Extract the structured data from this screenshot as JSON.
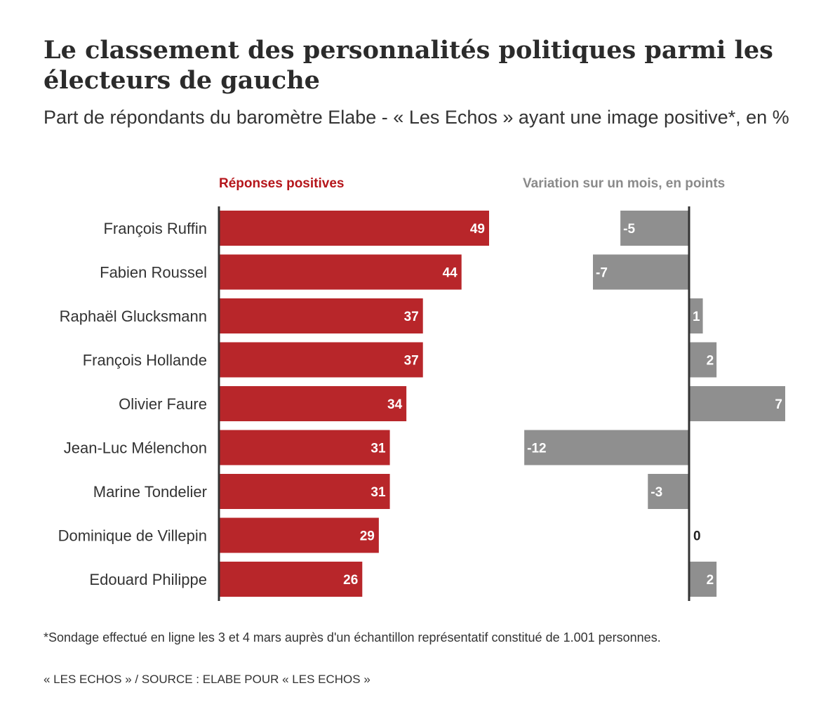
{
  "title": "Le classement des personnalités politiques parmi les électeurs de gauche",
  "subtitle": "Part de répondants du baromètre Elabe - « Les Echos » ayant une image positive*, en %",
  "footnote": "*Sondage effectué en ligne les 3 et 4 mars auprès d'un échantillon représentatif constitué de 1.001 personnes.",
  "source": "« LES ECHOS » / SOURCE : ELABE POUR « LES ECHOS »",
  "colors": {
    "positive_bar": "#b8262a",
    "variation_bar": "#8f8f8f",
    "positive_title": "#b5161b",
    "variation_title": "#8a8a8a",
    "axis": "#333333"
  },
  "chart_data": [
    {
      "type": "bar",
      "orientation": "horizontal",
      "title": "Réponses positives",
      "categories": [
        "François Ruffin",
        "Fabien Roussel",
        "Raphaël Glucksmann",
        "François Hollande",
        "Olivier Faure",
        "Jean-Luc Mélenchon",
        "Marine Tondelier",
        "Dominique de Villepin",
        "Edouard Philippe"
      ],
      "values": [
        49,
        44,
        37,
        37,
        34,
        31,
        31,
        29,
        26
      ],
      "xlim": [
        0,
        50
      ],
      "grid": false
    },
    {
      "type": "bar",
      "orientation": "horizontal",
      "title": "Variation sur un mois, en points",
      "categories": [
        "François Ruffin",
        "Fabien Roussel",
        "Raphaël Glucksmann",
        "François Hollande",
        "Olivier Faure",
        "Jean-Luc Mélenchon",
        "Marine Tondelier",
        "Dominique de Villepin",
        "Edouard Philippe"
      ],
      "values": [
        -5,
        -7,
        1,
        2,
        7,
        -12,
        -3,
        0,
        2
      ],
      "value_labels": [
        "-5",
        "-7",
        "1",
        "2",
        "7",
        "-12",
        "-3",
        "0",
        "2"
      ],
      "xlim": [
        -12,
        7
      ],
      "grid": false
    }
  ]
}
